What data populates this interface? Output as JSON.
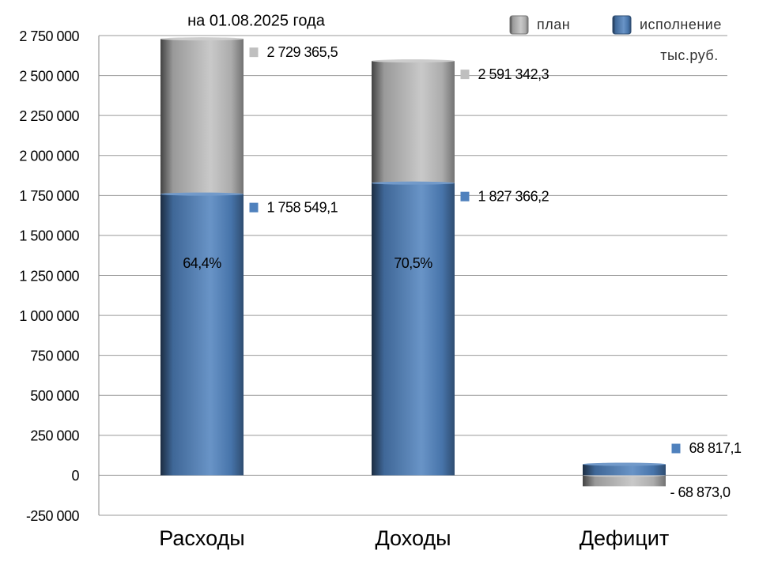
{
  "chart_data": {
    "type": "bar",
    "subtitle": "на 01.08.2025 года",
    "unit_label": "тыс.руб.",
    "categories": [
      "Расходы",
      "Доходы",
      "Дефицит"
    ],
    "series": [
      {
        "name": "план",
        "color": "#bfbfbf",
        "values": [
          2729365.5,
          2591342.3,
          -68873.0
        ],
        "value_labels": [
          "2 729 365,5",
          "2 591 342,3",
          "- 68 873,0"
        ]
      },
      {
        "name": "исполнение",
        "color": "#4f81bd",
        "values": [
          1758549.1,
          1827366.2,
          68817.1
        ],
        "value_labels": [
          "1 758 549,1",
          "1 827 366,2",
          "68 817,1"
        ],
        "percent_labels": [
          "64,4%",
          "70,5%",
          null
        ]
      }
    ],
    "ylim": [
      -250000,
      2750000
    ],
    "yticks": [
      {
        "value": -250000,
        "label": "-250 000"
      },
      0,
      {
        "value": 250000,
        "label": "250 000"
      },
      {
        "value": 500000,
        "label": "500 000"
      },
      {
        "value": 750000,
        "label": "750 000"
      },
      {
        "value": 1000000,
        "label": "1 000 000"
      },
      {
        "value": 1250000,
        "label": "1 250 000"
      },
      {
        "value": 1500000,
        "label": "1 500 000"
      },
      {
        "value": 1750000,
        "label": "1 750 000"
      },
      {
        "value": 2000000,
        "label": "2 000 000"
      },
      {
        "value": 2250000,
        "label": "2 250 000"
      },
      {
        "value": 2500000,
        "label": "2 500 000"
      },
      {
        "value": 2750000,
        "label": "2 750 000"
      }
    ],
    "grid": true
  }
}
